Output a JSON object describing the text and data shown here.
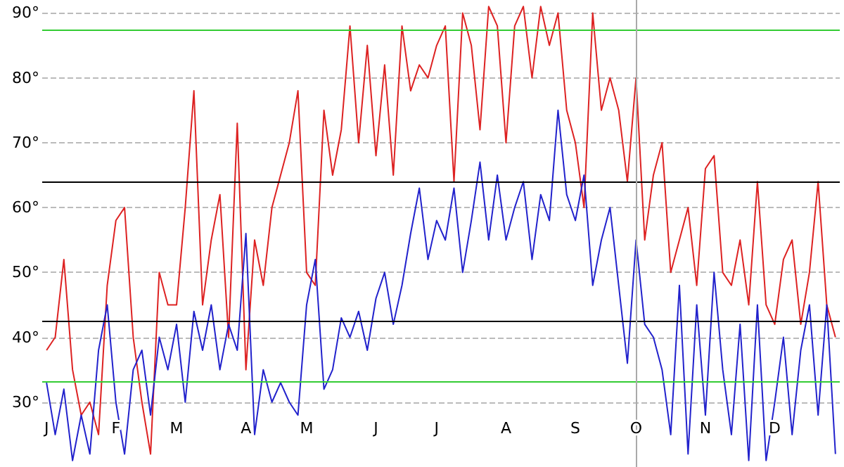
{
  "chart_data": {
    "type": "line",
    "categories": [
      "J",
      null,
      null,
      null,
      null,
      null,
      null,
      null,
      "F",
      null,
      null,
      null,
      null,
      null,
      null,
      "M",
      null,
      null,
      null,
      null,
      null,
      null,
      null,
      "A",
      null,
      null,
      null,
      null,
      null,
      null,
      "M",
      null,
      null,
      null,
      null,
      null,
      null,
      null,
      "J",
      null,
      null,
      null,
      null,
      null,
      null,
      "J",
      null,
      null,
      null,
      null,
      null,
      null,
      null,
      "A",
      null,
      null,
      null,
      null,
      null,
      null,
      null,
      "S",
      null,
      null,
      null,
      null,
      null,
      null,
      "O",
      null,
      null,
      null,
      null,
      null,
      null,
      null,
      "N",
      null,
      null,
      null,
      null,
      null,
      null,
      null,
      "D",
      null,
      null,
      null,
      null,
      null,
      null,
      null
    ],
    "series": [
      {
        "color": "#dd2222",
        "values": [
          38,
          40,
          52,
          35,
          28,
          30,
          25,
          48,
          58,
          60,
          40,
          30,
          22,
          50,
          45,
          45,
          60,
          78,
          45,
          55,
          62,
          40,
          73,
          35,
          55,
          48,
          60,
          65,
          70,
          78,
          50,
          48,
          75,
          65,
          72,
          88,
          70,
          85,
          68,
          82,
          65,
          88,
          78,
          82,
          80,
          85,
          88,
          64,
          90,
          85,
          72,
          91,
          88,
          70,
          88,
          91,
          80,
          91,
          85,
          90,
          75,
          70,
          60,
          90,
          75,
          80,
          75,
          64,
          80,
          55,
          65,
          70,
          50,
          55,
          60,
          48,
          66,
          68,
          50,
          48,
          55,
          45,
          64,
          45,
          42,
          52,
          55,
          42,
          50,
          64,
          45,
          40
        ]
      },
      {
        "color": "#2222cc",
        "values": [
          33,
          25,
          32,
          21,
          28,
          22,
          38,
          45,
          30,
          22,
          35,
          38,
          28,
          40,
          35,
          42,
          30,
          44,
          38,
          45,
          35,
          42,
          38,
          56,
          25,
          35,
          30,
          33,
          30,
          28,
          45,
          52,
          32,
          35,
          43,
          40,
          44,
          38,
          46,
          50,
          42,
          48,
          56,
          63,
          52,
          58,
          55,
          63,
          50,
          58,
          67,
          55,
          65,
          55,
          60,
          64,
          52,
          62,
          58,
          75,
          62,
          58,
          65,
          48,
          55,
          60,
          48,
          36,
          55,
          42,
          40,
          35,
          25,
          48,
          22,
          45,
          28,
          50,
          35,
          25,
          42,
          21,
          45,
          21,
          30,
          40,
          25,
          38,
          45,
          28,
          45,
          22
        ]
      }
    ],
    "ylim": [
      20,
      92
    ],
    "yticks": [
      {
        "value": 30,
        "label": "30°"
      },
      {
        "value": 40,
        "label": "40°"
      },
      {
        "value": 50,
        "label": "50°"
      },
      {
        "value": 60,
        "label": "60°"
      },
      {
        "value": 70,
        "label": "70°"
      },
      {
        "value": 80,
        "label": "80°"
      },
      {
        "value": 90,
        "label": "90°"
      }
    ],
    "grid": "y",
    "marker": "none",
    "ref_lines": [
      {
        "axis": "y",
        "value": 87.3,
        "color": "#33cc33"
      },
      {
        "axis": "y",
        "value": 33.2,
        "color": "#33cc33"
      },
      {
        "axis": "y",
        "value": 64,
        "color": "#000000"
      },
      {
        "axis": "y",
        "value": 42.5,
        "color": "#000000"
      },
      {
        "axis": "x",
        "value": "O",
        "color": "#aaaaaa"
      }
    ]
  }
}
